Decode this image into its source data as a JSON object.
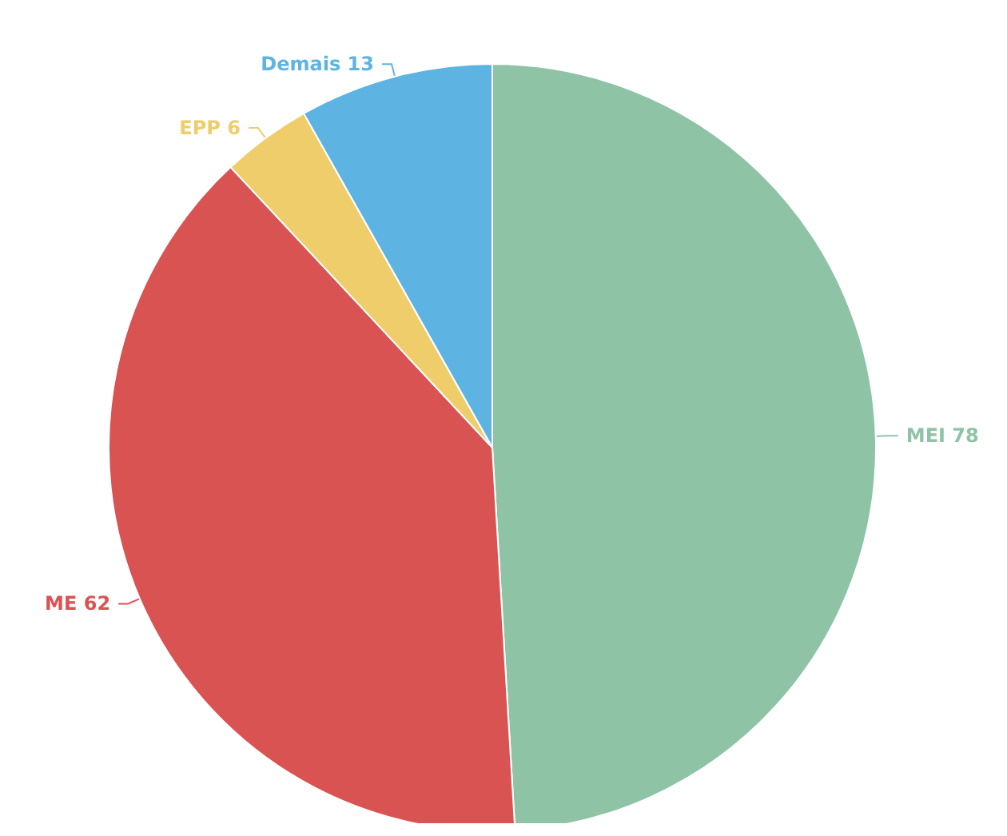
{
  "chart_data": {
    "type": "pie",
    "categories": [
      "MEI",
      "ME",
      "EPP",
      "Demais"
    ],
    "values": [
      78,
      62,
      6,
      13
    ],
    "colors": [
      "#8fc3a5",
      "#d95353",
      "#efcd6a",
      "#5db4e3"
    ],
    "data_labels": true,
    "legend": false
  }
}
